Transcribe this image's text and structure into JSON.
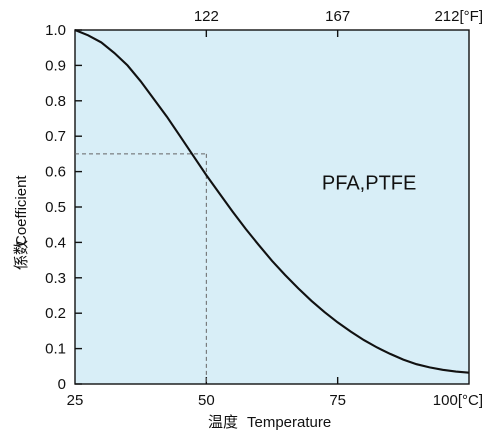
{
  "chart_data": {
    "type": "line",
    "xlabel": "温度",
    "xlabel_en": "Temperature",
    "ylabel": "係数",
    "ylabel_en": "Coefficient",
    "xlim": [
      25,
      100
    ],
    "ylim": [
      0,
      1.0
    ],
    "x_ticks": [
      {
        "value": 25,
        "label": "25"
      },
      {
        "value": 50,
        "label": "50"
      },
      {
        "value": 75,
        "label": "75"
      },
      {
        "value": 100,
        "label": "100[°C]"
      }
    ],
    "x_top_ticks": [
      {
        "value": 50,
        "label": "122"
      },
      {
        "value": 75,
        "label": "167"
      },
      {
        "value": 100,
        "label": "212[°F]"
      }
    ],
    "y_ticks": [
      {
        "value": 0,
        "label": "0"
      },
      {
        "value": 0.1,
        "label": "0.1"
      },
      {
        "value": 0.2,
        "label": "0.2"
      },
      {
        "value": 0.3,
        "label": "0.3"
      },
      {
        "value": 0.4,
        "label": "0.4"
      },
      {
        "value": 0.5,
        "label": "0.5"
      },
      {
        "value": 0.6,
        "label": "0.6"
      },
      {
        "value": 0.7,
        "label": "0.7"
      },
      {
        "value": 0.8,
        "label": "0.8"
      },
      {
        "value": 0.9,
        "label": "0.9"
      },
      {
        "value": 1.0,
        "label": "1.0"
      }
    ],
    "grid": false,
    "series": [
      {
        "name": "PFA,PTFE",
        "x": [
          25,
          27.5,
          30,
          32.5,
          35,
          37.5,
          40,
          42.5,
          45,
          47.5,
          50,
          52.5,
          55,
          57.5,
          60,
          62.5,
          65,
          67.5,
          70,
          72.5,
          75,
          77.5,
          80,
          82.5,
          85,
          87.5,
          90,
          92.5,
          95,
          97.5,
          100
        ],
        "y": [
          1.0,
          0.985,
          0.965,
          0.935,
          0.9,
          0.855,
          0.805,
          0.755,
          0.7,
          0.645,
          0.59,
          0.538,
          0.487,
          0.438,
          0.392,
          0.348,
          0.308,
          0.27,
          0.235,
          0.203,
          0.174,
          0.148,
          0.124,
          0.103,
          0.085,
          0.069,
          0.056,
          0.047,
          0.04,
          0.035,
          0.032
        ]
      }
    ],
    "annotations": [
      {
        "type": "text",
        "text": "PFA,PTFE",
        "x": 72,
        "y": 0.55
      },
      {
        "type": "reference_point",
        "x": 50,
        "y": 0.65,
        "style": "dashed"
      }
    ],
    "colors": {
      "plot_background": "#d8eef7",
      "line": "#111111",
      "axis": "#111111",
      "dashed": "#666666"
    }
  }
}
